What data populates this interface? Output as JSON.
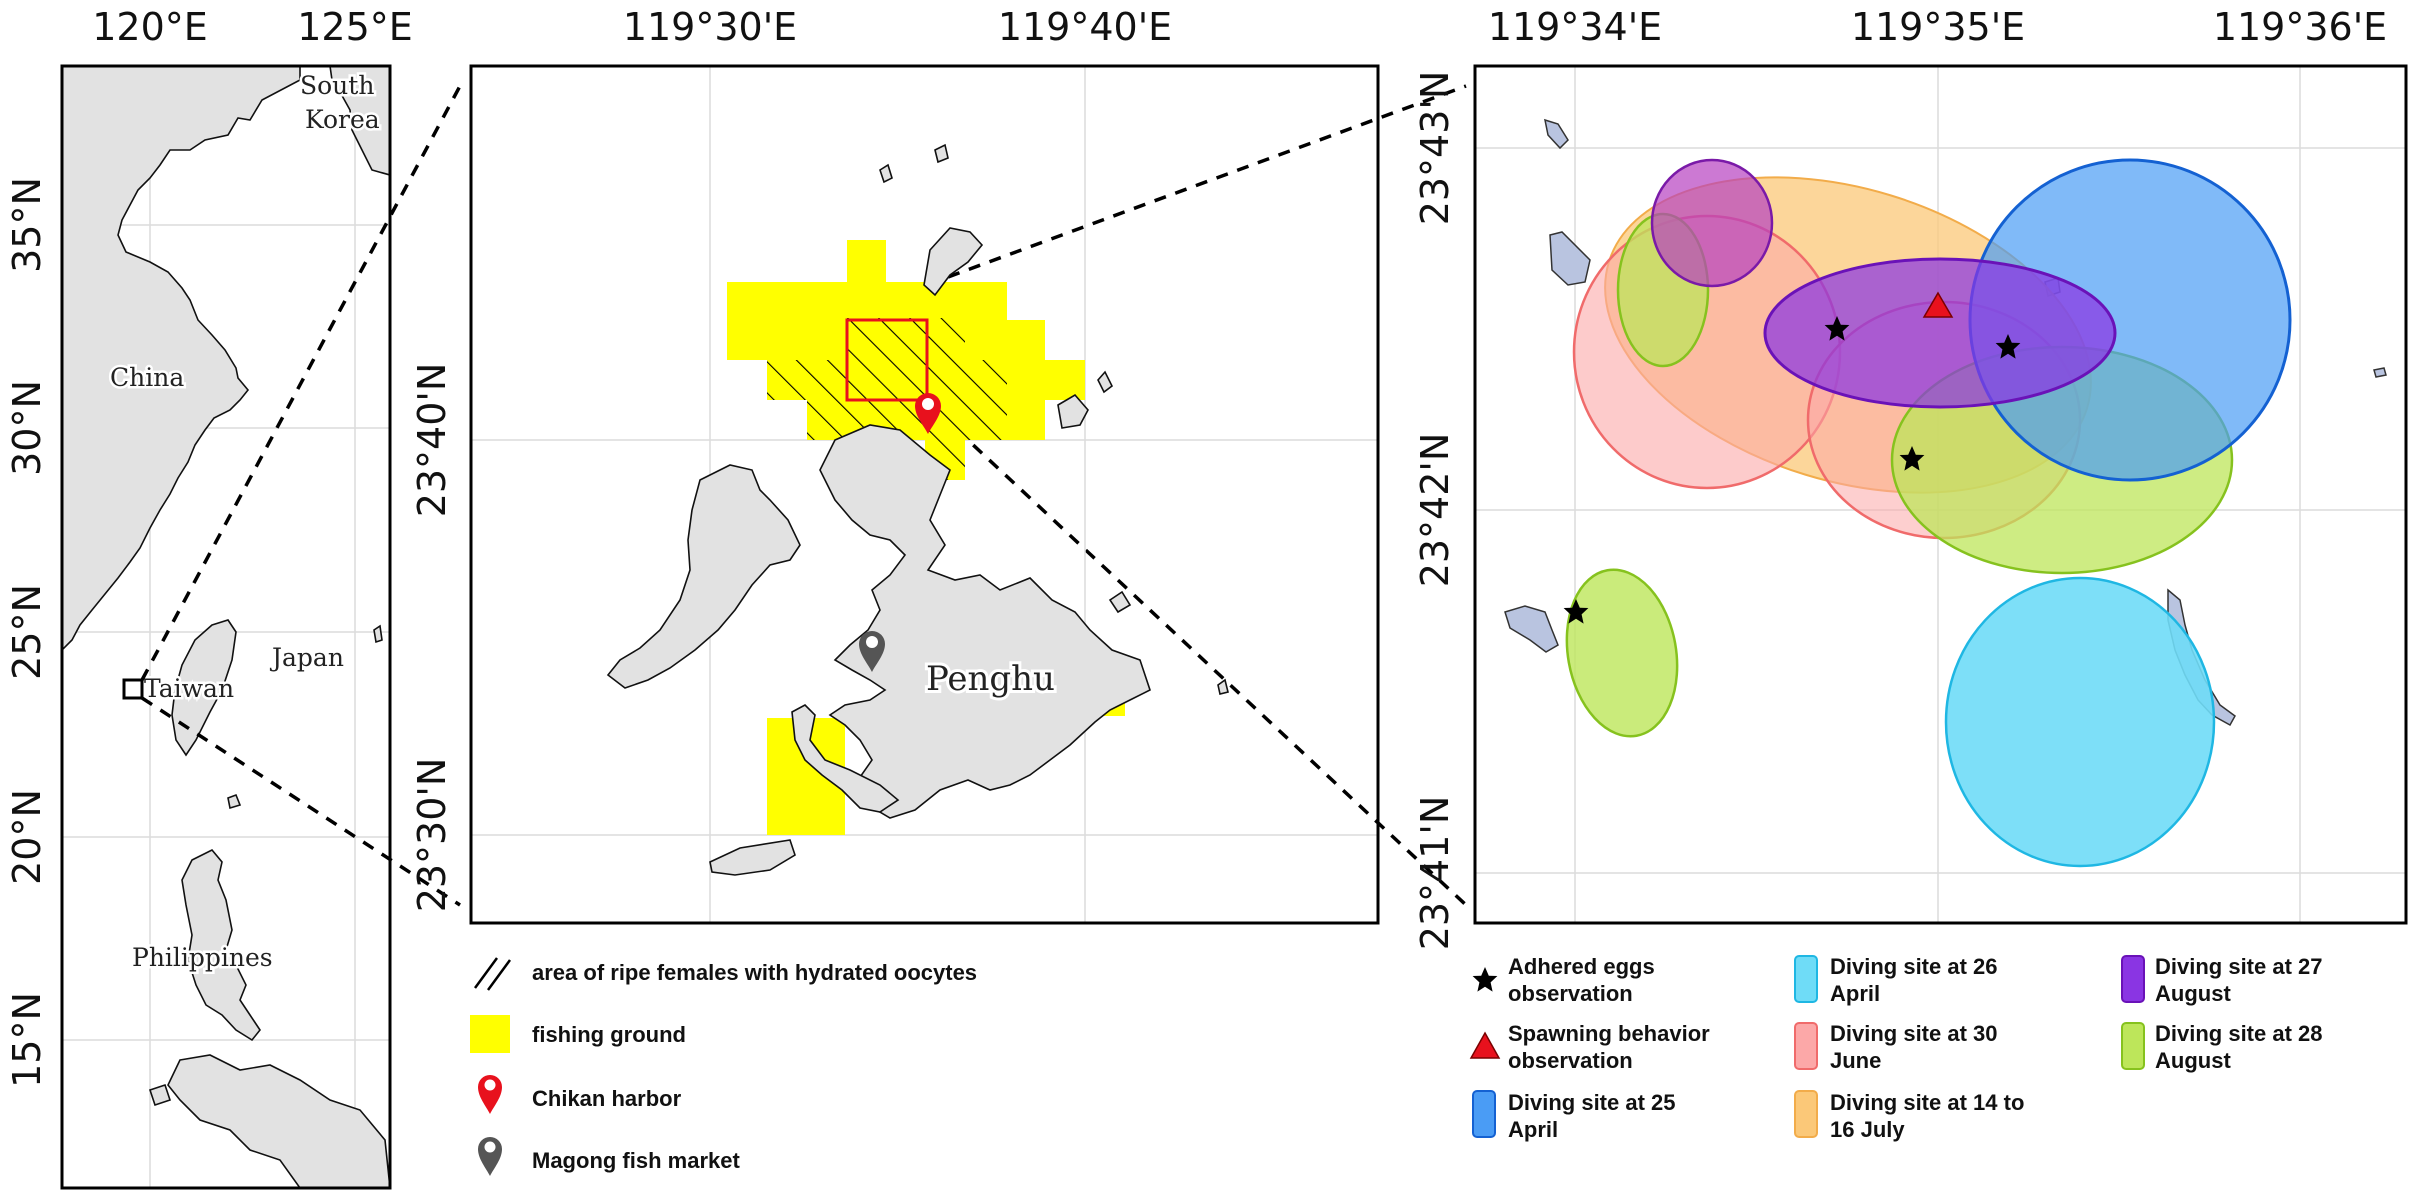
{
  "panel_left": {
    "x_ticks": [
      "120°E",
      "125°E"
    ],
    "y_ticks": [
      "35°N",
      "30°N",
      "25°N",
      "20°N",
      "15°N"
    ],
    "places": {
      "south_korea_1": "South",
      "south_korea_2": "Korea",
      "china": "China",
      "japan": "Japan",
      "taiwan": "Taiwan",
      "philippines": "Philippines"
    }
  },
  "panel_middle": {
    "x_ticks": [
      "119°30'E",
      "119°40'E"
    ],
    "y_ticks": [
      "23°40'N",
      "23°30'N"
    ],
    "places": {
      "penghu": "Penghu"
    }
  },
  "panel_right": {
    "x_ticks": [
      "119°34'E",
      "119°35'E",
      "119°36'E"
    ],
    "y_ticks": [
      "23°43'N",
      "23°42'N",
      "23°41'N"
    ]
  },
  "legend_middle": {
    "hatch": "area of ripe females with hydrated oocytes",
    "fishing": "fishing ground",
    "chikan": "Chikan harbor",
    "magong": "Magong fish market"
  },
  "legend_right": {
    "eggs_1": "Adhered eggs",
    "eggs_2": "observation",
    "spawn_1": "Spawning behavior",
    "spawn_2": "observation",
    "d25_1": "Diving site at  25",
    "d25_2": "April",
    "d26_1": "Diving site at 26",
    "d26_2": "April",
    "d30_1": "Diving site at 30",
    "d30_2": "June",
    "d14_1": "Diving site at 14 to",
    "d14_2": "16 July",
    "d27_1": "Diving site at  27",
    "d27_2": "August",
    "d28_1": "Diving site at  28",
    "d28_2": "August"
  },
  "colors": {
    "fishing": "#ffff00",
    "apr25": "#4a9cf5",
    "apr26": "#6fdcf7",
    "jun30": "#fca8a8",
    "jul": "#fbc878",
    "aug27": "#8a35e3",
    "aug28": "#bde65a",
    "harbor": "#e8111d",
    "market": "#555555"
  }
}
